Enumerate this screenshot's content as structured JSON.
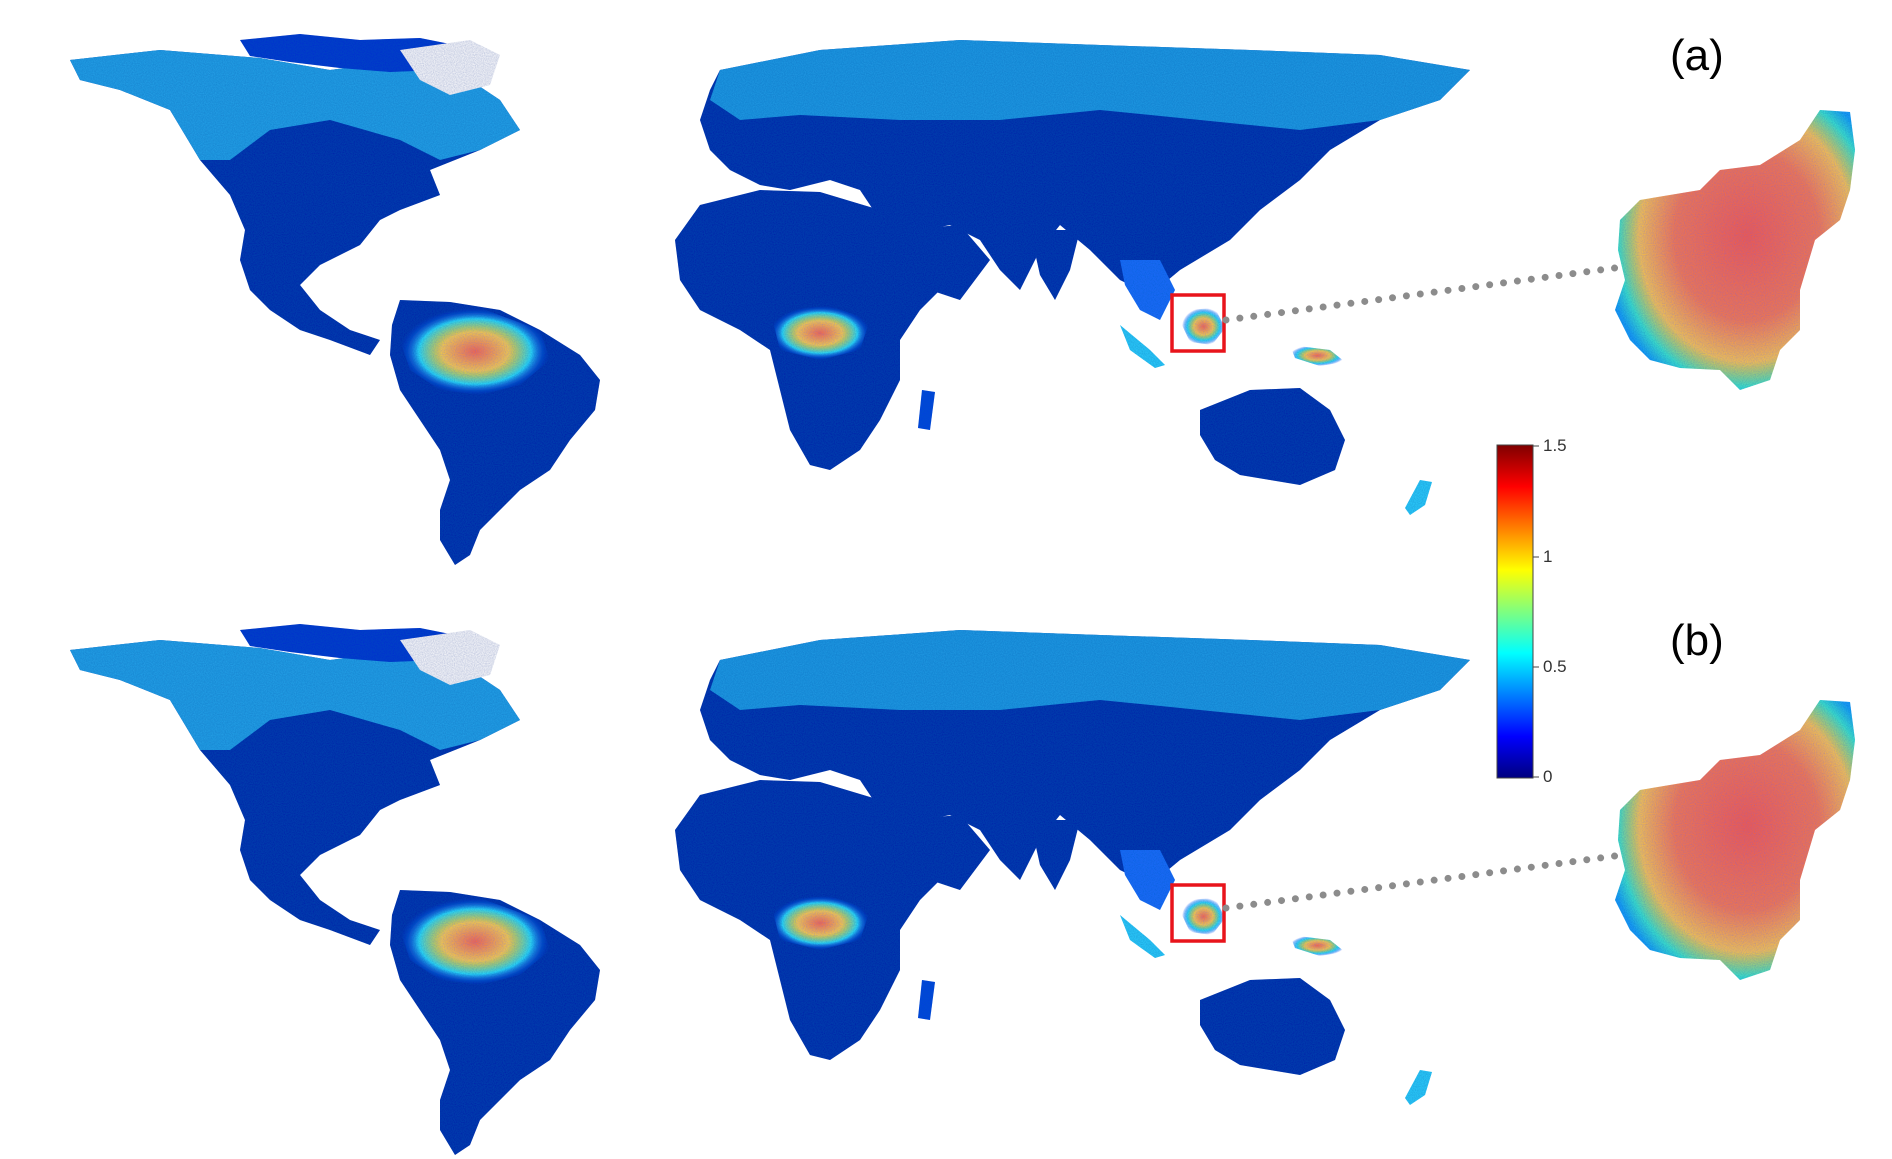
{
  "panels": [
    {
      "id": "a",
      "label": "(a)"
    },
    {
      "id": "b",
      "label": "(b)"
    }
  ],
  "colorbar": {
    "min": 0,
    "max": 1.5,
    "ticks": [
      "1.5",
      "1",
      "0.5",
      "0"
    ],
    "colormap": "jet",
    "colors": [
      "#00007f",
      "#0000ff",
      "#007fff",
      "#00ffff",
      "#7fff7f",
      "#ffff00",
      "#ff7f00",
      "#ff0000",
      "#7f0000"
    ]
  },
  "highlight": {
    "box_color": "#e8141b",
    "connector_color": "#8c8c8c"
  },
  "land_color_low": "#0a1fa8"
}
